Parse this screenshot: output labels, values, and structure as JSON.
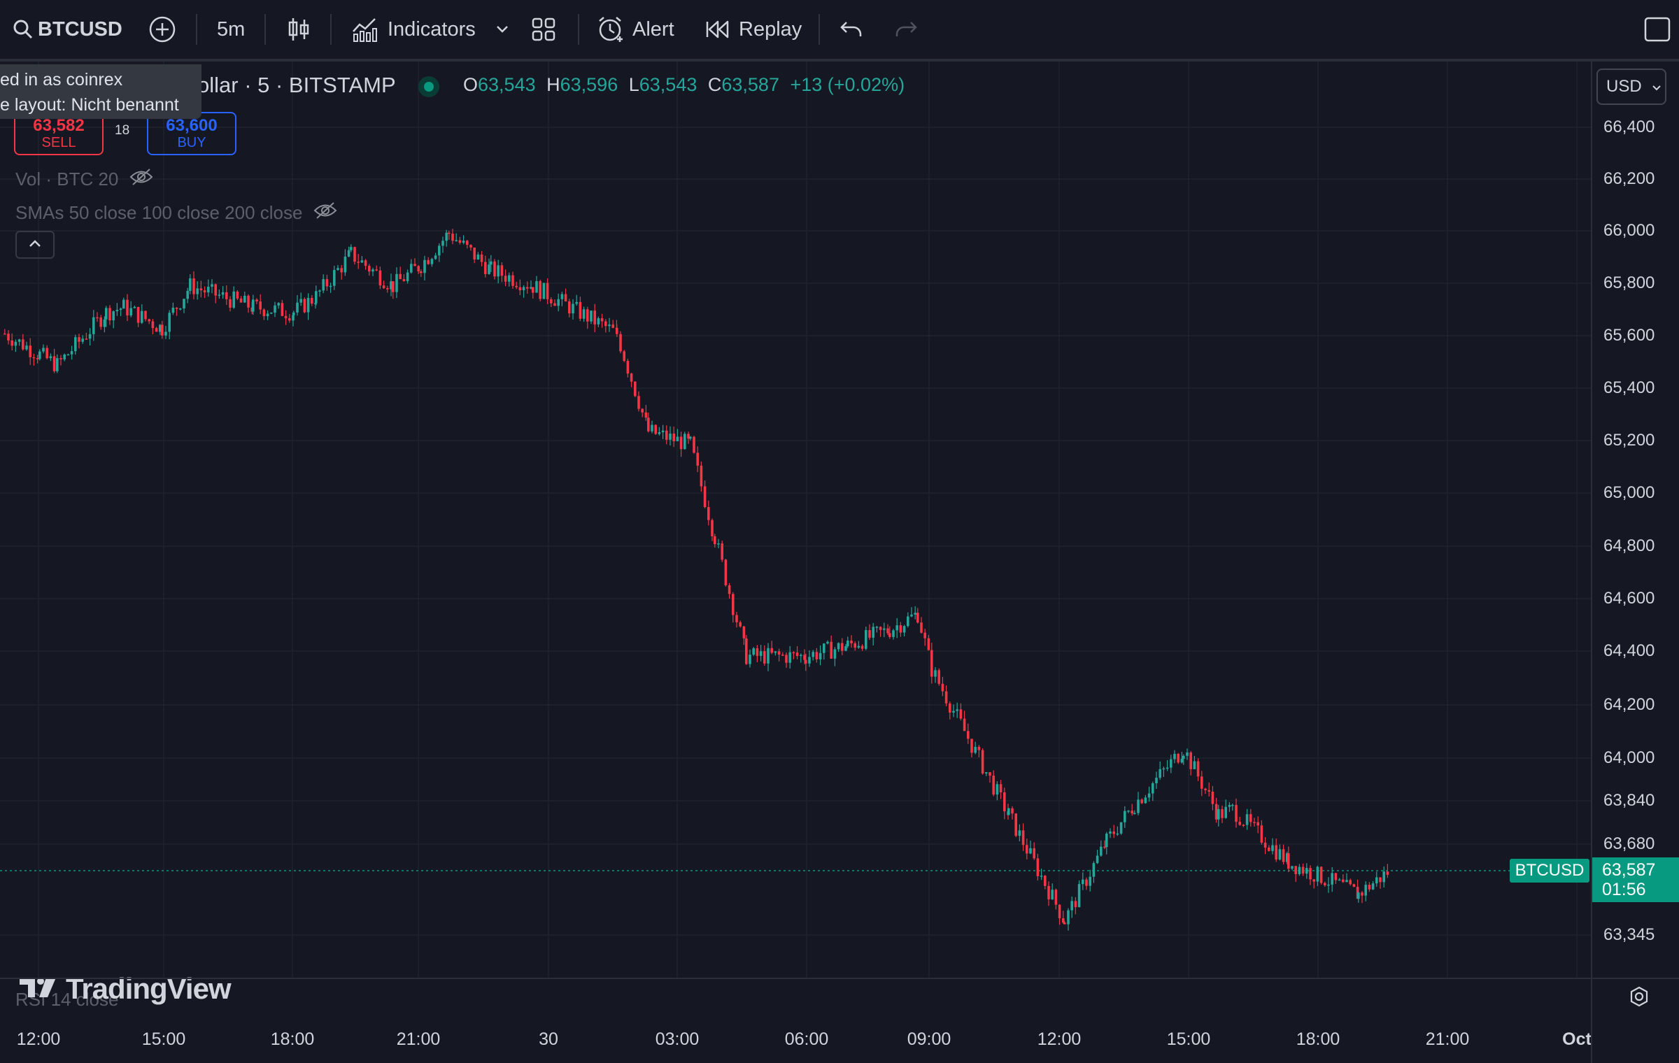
{
  "toolbar": {
    "symbol": "BTCUSD",
    "interval": "5m",
    "indicators_label": "Indicators",
    "alert_label": "Alert",
    "replay_label": "Replay",
    "icons": [
      "search-icon",
      "add-symbol-icon",
      "candles-icon",
      "indicators-icon",
      "chevron-down-icon",
      "layout-grid-icon",
      "alert-icon",
      "replay-icon",
      "undo-icon",
      "redo-icon",
      "fullscreen-icon"
    ]
  },
  "tooltip": {
    "line1": "ed in as coinrex",
    "line2": "e layout: Nicht benannt"
  },
  "legend": {
    "title_visible": "ollar · 5 · BITSTAMP",
    "open_key": "O",
    "open": "63,543",
    "high_key": "H",
    "high": "63,596",
    "low_key": "L",
    "low": "63,543",
    "close_key": "C",
    "close": "63,587",
    "change": "+13 (+0.02%)",
    "status_color": "#089981"
  },
  "trade": {
    "sell_price": "63,582",
    "sell_label": "SELL",
    "spread": "18",
    "buy_price": "63,600",
    "buy_label": "BUY"
  },
  "indicators": {
    "volume": "Vol · BTC 20",
    "smas": "SMAs 50 close 100 close 200 close",
    "rsi": "RSI 14 close"
  },
  "currency": "USD",
  "logo_text": "TradingView",
  "price_axis_labels": [
    "66,400",
    "66,200",
    "66,000",
    "65,800",
    "65,600",
    "65,400",
    "65,200",
    "65,000",
    "64,800",
    "64,600",
    "64,400",
    "64,200",
    "64,000",
    "63,840",
    "63,680",
    "63,345"
  ],
  "time_axis_labels": [
    "12:00",
    "15:00",
    "18:00",
    "21:00",
    "30",
    "03:00",
    "06:00",
    "09:00",
    "12:00",
    "15:00",
    "18:00",
    "21:00",
    "Oct"
  ],
  "last_price": {
    "symbol": "BTCUSD",
    "price": "63,587",
    "countdown": "01:56"
  },
  "colors": {
    "up": "#26a69a",
    "down": "#f23645",
    "background": "#151822",
    "grid": "#1f232e"
  },
  "chart_data": {
    "type": "candlestick",
    "interval": "5m",
    "series": [
      {
        "t": "11:00",
        "close": 65620
      },
      {
        "t": "12:00",
        "close": 65540
      },
      {
        "t": "13:00",
        "close": 65500
      },
      {
        "t": "14:00",
        "close": 65700
      },
      {
        "t": "15:00",
        "close": 65720
      },
      {
        "t": "15:30",
        "close": 65640
      },
      {
        "t": "16:00",
        "close": 65800
      },
      {
        "t": "17:00",
        "close": 65720
      },
      {
        "t": "18:00",
        "close": 65700
      },
      {
        "t": "19:00",
        "close": 65760
      },
      {
        "t": "20:00",
        "close": 65920
      },
      {
        "t": "21:00",
        "close": 65800
      },
      {
        "t": "22:00",
        "close": 65880
      },
      {
        "t": "23:00",
        "close": 66000
      },
      {
        "t": "00:00",
        "close": 65860
      },
      {
        "t": "01:00",
        "close": 65800
      },
      {
        "t": "02:00",
        "close": 65620
      },
      {
        "t": "03:00",
        "close": 65250
      },
      {
        "t": "04:00",
        "close": 65200
      },
      {
        "t": "04:30",
        "close": 64850
      },
      {
        "t": "05:00",
        "close": 64400
      },
      {
        "t": "06:00",
        "close": 64400
      },
      {
        "t": "07:00",
        "close": 64440
      },
      {
        "t": "08:00",
        "close": 64500
      },
      {
        "t": "09:00",
        "close": 64560
      },
      {
        "t": "10:00",
        "close": 64350
      },
      {
        "t": "11:00",
        "close": 63800
      },
      {
        "t": "12:00",
        "close": 63400
      },
      {
        "t": "13:00",
        "close": 63700
      },
      {
        "t": "14:00",
        "close": 63840
      },
      {
        "t": "15:00",
        "close": 64050
      },
      {
        "t": "16:00",
        "close": 63800
      },
      {
        "t": "17:00",
        "close": 63820
      },
      {
        "t": "18:00",
        "close": 63620
      },
      {
        "t": "19:00",
        "close": 63500
      },
      {
        "t": "19:30",
        "close": 63587
      }
    ]
  }
}
